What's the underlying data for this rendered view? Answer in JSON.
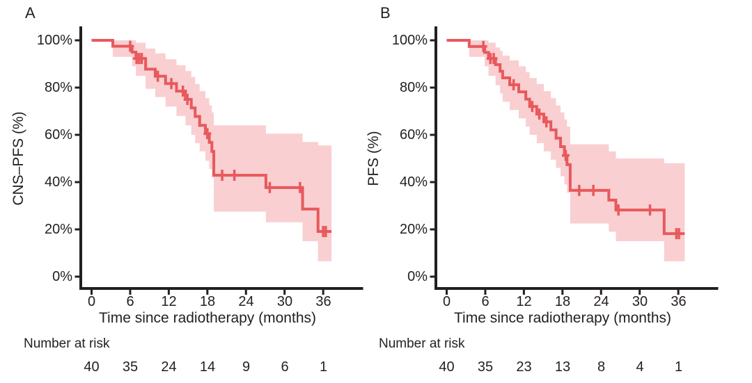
{
  "chart_data": [
    {
      "type": "line",
      "variant": "kaplan_meier_step_with_confidence_band",
      "panel_label": "A",
      "title": "",
      "xlabel": "Time since radiotherapy (months)",
      "ylabel": "CNS–PFS (%)",
      "risk_label": "Number at risk",
      "xlim": [
        0,
        39
      ],
      "ylim": [
        0,
        100
      ],
      "x_ticks": [
        0,
        6,
        12,
        18,
        24,
        30,
        36
      ],
      "x_tick_labels": [
        "0",
        "6",
        "12",
        "18",
        "24",
        "30",
        "36"
      ],
      "y_tick_values": [
        100,
        80,
        60,
        40,
        20,
        0
      ],
      "y_tick_labels": [
        "100%",
        "80%",
        "60%",
        "40%",
        "20%",
        "0%"
      ],
      "grid": false,
      "legend": "none",
      "line_color": "#e8595c",
      "band_color": "#f9cfd2",
      "axis_color": "#231f20",
      "end_time": 37.3,
      "steps": [
        [
          0,
          100
        ],
        [
          3.3,
          97.5
        ],
        [
          6.3,
          95
        ],
        [
          6.9,
          92.3
        ],
        [
          8.4,
          87.8
        ],
        [
          9.9,
          84.8
        ],
        [
          11.5,
          81.7
        ],
        [
          13.2,
          78.5
        ],
        [
          14.6,
          75
        ],
        [
          15.5,
          71.4
        ],
        [
          16.1,
          67.8
        ],
        [
          16.8,
          64
        ],
        [
          17.7,
          60.5
        ],
        [
          18.3,
          56.8
        ],
        [
          18.7,
          53
        ],
        [
          19,
          42.9
        ],
        [
          27.1,
          37.7
        ],
        [
          32.8,
          28.6
        ],
        [
          35.2,
          19.1
        ]
      ],
      "censor_marks": [
        [
          6,
          97.5
        ],
        [
          7,
          92.3
        ],
        [
          7.4,
          92.3
        ],
        [
          7.8,
          92.3
        ],
        [
          10.3,
          84.8
        ],
        [
          12.4,
          81.7
        ],
        [
          14.2,
          78.5
        ],
        [
          14.9,
          75
        ],
        [
          18,
          60.5
        ],
        [
          20.3,
          42.9
        ],
        [
          22.2,
          42.9
        ],
        [
          27.7,
          37.7
        ],
        [
          32.4,
          37.7
        ],
        [
          36,
          19.1
        ],
        [
          36.4,
          19.1
        ]
      ],
      "ci": [
        [
          3.3,
          93,
          100
        ],
        [
          6.3,
          89,
          100
        ],
        [
          6.9,
          85,
          99
        ],
        [
          8.4,
          79.5,
          96.5
        ],
        [
          9.9,
          76,
          94.5
        ],
        [
          11.5,
          72,
          92
        ],
        [
          13.2,
          68,
          89.5
        ],
        [
          14.6,
          64,
          87
        ],
        [
          15.5,
          60,
          84.5
        ],
        [
          16.1,
          56.5,
          81.5
        ],
        [
          16.8,
          53,
          78.5
        ],
        [
          17.7,
          49,
          75.5
        ],
        [
          18.3,
          45.5,
          72.5
        ],
        [
          18.7,
          42,
          69.5
        ],
        [
          19,
          27.5,
          64
        ],
        [
          27.1,
          23,
          60.5
        ],
        [
          32.8,
          15,
          57
        ],
        [
          35.2,
          6.5,
          55.5
        ]
      ],
      "number_at_risk": {
        "times": [
          0,
          6,
          12,
          18,
          24,
          30,
          36
        ],
        "values": [
          40,
          35,
          24,
          14,
          9,
          6,
          1
        ]
      }
    },
    {
      "type": "line",
      "variant": "kaplan_meier_step_with_confidence_band",
      "panel_label": "B",
      "title": "",
      "xlabel": "Time since radiotherapy (months)",
      "ylabel": "PFS (%)",
      "risk_label": "Number at risk",
      "xlim": [
        0,
        39
      ],
      "ylim": [
        0,
        100
      ],
      "x_ticks": [
        0,
        6,
        12,
        18,
        24,
        30,
        36
      ],
      "x_tick_labels": [
        "0",
        "6",
        "12",
        "18",
        "24",
        "30",
        "36"
      ],
      "y_tick_values": [
        100,
        80,
        60,
        40,
        20,
        0
      ],
      "y_tick_labels": [
        "100%",
        "80%",
        "60%",
        "40%",
        "20%",
        "0%"
      ],
      "grid": false,
      "legend": "none",
      "line_color": "#e8595c",
      "band_color": "#f9cfd2",
      "axis_color": "#231f20",
      "end_time": 37.0,
      "steps": [
        [
          0,
          100
        ],
        [
          3.5,
          97.4
        ],
        [
          5.9,
          94.9
        ],
        [
          6.5,
          92.3
        ],
        [
          7.6,
          89.7
        ],
        [
          8.3,
          86.9
        ],
        [
          8.7,
          84.1
        ],
        [
          9.8,
          81.2
        ],
        [
          11.2,
          78.2
        ],
        [
          12.3,
          75.1
        ],
        [
          12.9,
          72
        ],
        [
          14,
          68.8
        ],
        [
          15.1,
          65.5
        ],
        [
          16.2,
          62.1
        ],
        [
          17,
          58.6
        ],
        [
          17.7,
          55
        ],
        [
          18.3,
          51.3
        ],
        [
          18.7,
          47.4
        ],
        [
          19.2,
          36.5
        ],
        [
          25.2,
          32.4
        ],
        [
          26.3,
          28.2
        ],
        [
          33.8,
          18.2
        ]
      ],
      "censor_marks": [
        [
          5.7,
          97.4
        ],
        [
          6.8,
          92.3
        ],
        [
          7.3,
          92.3
        ],
        [
          10.4,
          81.2
        ],
        [
          13.3,
          72
        ],
        [
          14.4,
          68.8
        ],
        [
          15.5,
          65.5
        ],
        [
          18.5,
          51.3
        ],
        [
          20.6,
          36.5
        ],
        [
          22.8,
          36.5
        ],
        [
          26.7,
          28.2
        ],
        [
          31.6,
          28.2
        ],
        [
          35.7,
          18.2
        ],
        [
          36.1,
          18.2
        ]
      ],
      "ci": [
        [
          3.5,
          93,
          100
        ],
        [
          5.9,
          89,
          100
        ],
        [
          6.5,
          85,
          99
        ],
        [
          7.6,
          81,
          97
        ],
        [
          8.3,
          77.5,
          95.5
        ],
        [
          8.7,
          74,
          93.5
        ],
        [
          9.8,
          70.5,
          91.5
        ],
        [
          11.2,
          67,
          89
        ],
        [
          12.3,
          63.5,
          86.5
        ],
        [
          12.9,
          60,
          84
        ],
        [
          14,
          56.5,
          81.5
        ],
        [
          15.1,
          53,
          78.5
        ],
        [
          16.2,
          49.5,
          75.5
        ],
        [
          17,
          46,
          72.5
        ],
        [
          17.7,
          42.5,
          69.5
        ],
        [
          18.3,
          39,
          66.5
        ],
        [
          18.7,
          35.5,
          63.5
        ],
        [
          19.2,
          22.5,
          56
        ],
        [
          25.2,
          19,
          53
        ],
        [
          26.3,
          15,
          50
        ],
        [
          33.8,
          6.5,
          48
        ]
      ],
      "number_at_risk": {
        "times": [
          0,
          6,
          12,
          18,
          24,
          30,
          36
        ],
        "values": [
          40,
          35,
          23,
          13,
          8,
          4,
          1
        ]
      }
    }
  ]
}
